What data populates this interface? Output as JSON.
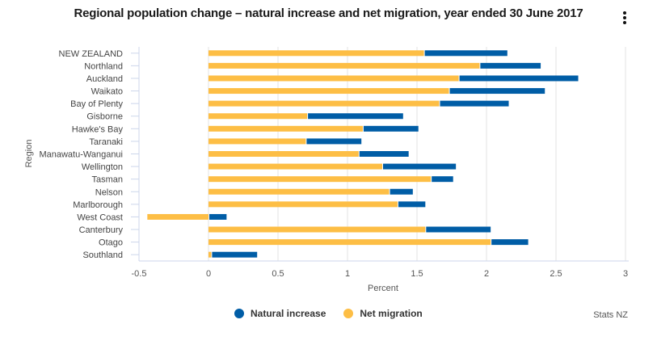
{
  "title": "Regional population change – natural increase and net migration, year ended 30 June 2017",
  "menu_icon": "more-vertical-icon",
  "source": "Stats NZ",
  "colors": {
    "natural_increase": "#005da6",
    "net_migration": "#fdbe45",
    "grid": "#e3e3e3",
    "axis": "#ccd6eb"
  },
  "legend": [
    {
      "label": "Natural increase",
      "color": "#005da6"
    },
    {
      "label": "Net migration",
      "color": "#fdbe45"
    }
  ],
  "chart_data": {
    "type": "bar",
    "orientation": "horizontal",
    "stacked": true,
    "title": "Regional population change – natural increase and net migration, year ended 30 June 2017",
    "xlabel": "Percent",
    "ylabel": "Region",
    "xlim": [
      -0.5,
      3
    ],
    "xticks": [
      "-0.5",
      "0",
      "0.5",
      "1",
      "1.5",
      "2",
      "2.5",
      "3"
    ],
    "xtick_values": [
      -0.5,
      0,
      0.5,
      1,
      1.5,
      2,
      2.5,
      3
    ],
    "grid": true,
    "legend_position": "bottom",
    "categories": [
      "NEW ZEALAND",
      "Northland",
      "Auckland",
      "Waikato",
      "Bay of Plenty",
      "Gisborne",
      "Hawke's Bay",
      "Taranaki",
      "Manawatu-Wanganui",
      "Wellington",
      "Tasman",
      "Nelson",
      "Marlborough",
      "West Coast",
      "Canterbury",
      "Otago",
      "Southland"
    ],
    "series": [
      {
        "name": "Net migration",
        "color": "#fdbe45",
        "values": [
          1.55,
          1.95,
          1.8,
          1.73,
          1.66,
          0.71,
          1.11,
          0.7,
          1.08,
          1.25,
          1.6,
          1.3,
          1.36,
          -0.44,
          1.56,
          2.03,
          0.02
        ]
      },
      {
        "name": "Natural increase",
        "color": "#005da6",
        "values": [
          0.6,
          0.44,
          0.86,
          0.69,
          0.5,
          0.69,
          0.4,
          0.4,
          0.36,
          0.53,
          0.16,
          0.17,
          0.2,
          0.13,
          0.47,
          0.27,
          0.33
        ]
      }
    ]
  }
}
